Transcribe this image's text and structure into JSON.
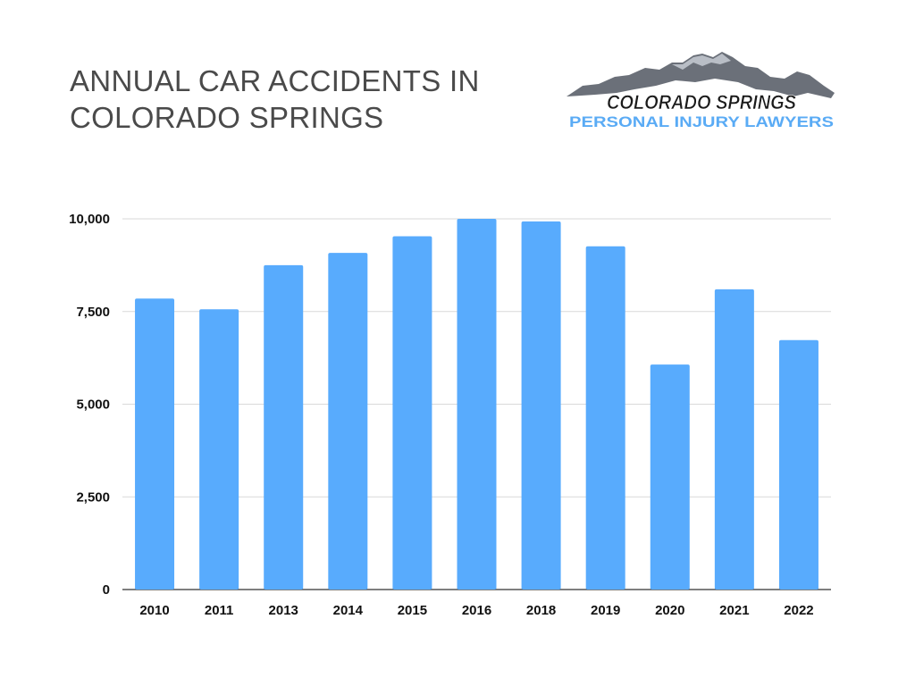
{
  "title_lines": [
    "ANNUAL CAR ACCIDENTS IN",
    "COLORADO SPRINGS"
  ],
  "logo": {
    "line1": "COLORADO SPRINGS",
    "line2": "PERSONAL INJURY LAWYERS",
    "line1_color": "#1a1a1a",
    "line2_color": "#5aabf5",
    "mountain_color": "#6b7079"
  },
  "chart_data": {
    "type": "bar",
    "title": "ANNUAL CAR ACCIDENTS IN COLORADO SPRINGS",
    "xlabel": "",
    "ylabel": "",
    "categories": [
      "2010",
      "2011",
      "2013",
      "2014",
      "2015",
      "2016",
      "2018",
      "2019",
      "2020",
      "2021",
      "2022"
    ],
    "values": [
      7850,
      7560,
      8750,
      9080,
      9530,
      10000,
      9930,
      9260,
      6070,
      8100,
      6730
    ],
    "ylim": [
      0,
      10000
    ],
    "yticks": [
      0,
      2500,
      5000,
      7500,
      10000
    ],
    "ytick_labels": [
      "0",
      "2,500",
      "5,000",
      "7,500",
      "10,000"
    ],
    "grid": true,
    "legend": "none",
    "bar_color": "#58abfd"
  }
}
